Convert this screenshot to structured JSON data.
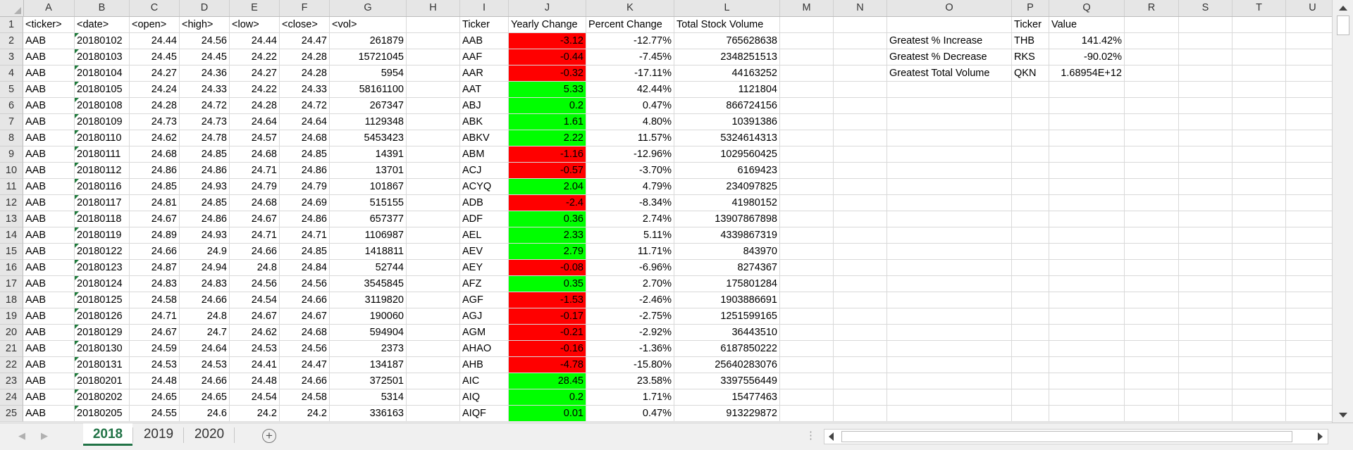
{
  "columns": [
    "A",
    "B",
    "C",
    "D",
    "E",
    "F",
    "G",
    "H",
    "I",
    "J",
    "K",
    "L",
    "M",
    "N",
    "O",
    "P",
    "Q",
    "R",
    "S",
    "T",
    "U"
  ],
  "colors": {
    "positive": "#00ff00",
    "negative": "#ff0000",
    "active_tab": "#217346"
  },
  "raw_headers": [
    "<ticker>",
    "<date>",
    "<open>",
    "<high>",
    "<low>",
    "<close>",
    "<vol>"
  ],
  "raw_rows": [
    [
      "AAB",
      "20180102",
      "24.44",
      "24.56",
      "24.44",
      "24.47",
      "261879"
    ],
    [
      "AAB",
      "20180103",
      "24.45",
      "24.45",
      "24.22",
      "24.28",
      "15721045"
    ],
    [
      "AAB",
      "20180104",
      "24.27",
      "24.36",
      "24.27",
      "24.28",
      "5954"
    ],
    [
      "AAB",
      "20180105",
      "24.24",
      "24.33",
      "24.22",
      "24.33",
      "58161100"
    ],
    [
      "AAB",
      "20180108",
      "24.28",
      "24.72",
      "24.28",
      "24.72",
      "267347"
    ],
    [
      "AAB",
      "20180109",
      "24.73",
      "24.73",
      "24.64",
      "24.64",
      "1129348"
    ],
    [
      "AAB",
      "20180110",
      "24.62",
      "24.78",
      "24.57",
      "24.68",
      "5453423"
    ],
    [
      "AAB",
      "20180111",
      "24.68",
      "24.85",
      "24.68",
      "24.85",
      "14391"
    ],
    [
      "AAB",
      "20180112",
      "24.86",
      "24.86",
      "24.71",
      "24.86",
      "13701"
    ],
    [
      "AAB",
      "20180116",
      "24.85",
      "24.93",
      "24.79",
      "24.79",
      "101867"
    ],
    [
      "AAB",
      "20180117",
      "24.81",
      "24.85",
      "24.68",
      "24.69",
      "515155"
    ],
    [
      "AAB",
      "20180118",
      "24.67",
      "24.86",
      "24.67",
      "24.86",
      "657377"
    ],
    [
      "AAB",
      "20180119",
      "24.89",
      "24.93",
      "24.71",
      "24.71",
      "1106987"
    ],
    [
      "AAB",
      "20180122",
      "24.66",
      "24.9",
      "24.66",
      "24.85",
      "1418811"
    ],
    [
      "AAB",
      "20180123",
      "24.87",
      "24.94",
      "24.8",
      "24.84",
      "52744"
    ],
    [
      "AAB",
      "20180124",
      "24.83",
      "24.83",
      "24.56",
      "24.56",
      "3545845"
    ],
    [
      "AAB",
      "20180125",
      "24.58",
      "24.66",
      "24.54",
      "24.66",
      "3119820"
    ],
    [
      "AAB",
      "20180126",
      "24.71",
      "24.8",
      "24.67",
      "24.67",
      "190060"
    ],
    [
      "AAB",
      "20180129",
      "24.67",
      "24.7",
      "24.62",
      "24.68",
      "594904"
    ],
    [
      "AAB",
      "20180130",
      "24.59",
      "24.64",
      "24.53",
      "24.56",
      "2373"
    ],
    [
      "AAB",
      "20180131",
      "24.53",
      "24.53",
      "24.41",
      "24.47",
      "134187"
    ],
    [
      "AAB",
      "20180201",
      "24.48",
      "24.66",
      "24.48",
      "24.66",
      "372501"
    ],
    [
      "AAB",
      "20180202",
      "24.65",
      "24.65",
      "24.54",
      "24.58",
      "5314"
    ],
    [
      "AAB",
      "20180205",
      "24.55",
      "24.6",
      "24.2",
      "24.2",
      "336163"
    ]
  ],
  "summary_headers": [
    "Ticker",
    "Yearly Change",
    "Percent Change",
    "Total Stock Volume"
  ],
  "summary_rows": [
    {
      "ticker": "AAB",
      "change": "-3.12",
      "pct": "-12.77%",
      "vol": "765628638",
      "dir": "neg"
    },
    {
      "ticker": "AAF",
      "change": "-0.44",
      "pct": "-7.45%",
      "vol": "2348251513",
      "dir": "neg"
    },
    {
      "ticker": "AAR",
      "change": "-0.32",
      "pct": "-17.11%",
      "vol": "44163252",
      "dir": "neg"
    },
    {
      "ticker": "AAT",
      "change": "5.33",
      "pct": "42.44%",
      "vol": "1121804",
      "dir": "pos"
    },
    {
      "ticker": "ABJ",
      "change": "0.2",
      "pct": "0.47%",
      "vol": "866724156",
      "dir": "pos"
    },
    {
      "ticker": "ABK",
      "change": "1.61",
      "pct": "4.80%",
      "vol": "10391386",
      "dir": "pos"
    },
    {
      "ticker": "ABKV",
      "change": "2.22",
      "pct": "11.57%",
      "vol": "5324614313",
      "dir": "pos"
    },
    {
      "ticker": "ABM",
      "change": "-1.16",
      "pct": "-12.96%",
      "vol": "1029560425",
      "dir": "neg"
    },
    {
      "ticker": "ACJ",
      "change": "-0.57",
      "pct": "-3.70%",
      "vol": "6169423",
      "dir": "neg"
    },
    {
      "ticker": "ACYQ",
      "change": "2.04",
      "pct": "4.79%",
      "vol": "234097825",
      "dir": "pos"
    },
    {
      "ticker": "ADB",
      "change": "-2.4",
      "pct": "-8.34%",
      "vol": "41980152",
      "dir": "neg"
    },
    {
      "ticker": "ADF",
      "change": "0.36",
      "pct": "2.74%",
      "vol": "13907867898",
      "dir": "pos"
    },
    {
      "ticker": "AEL",
      "change": "2.33",
      "pct": "5.11%",
      "vol": "4339867319",
      "dir": "pos"
    },
    {
      "ticker": "AEV",
      "change": "2.79",
      "pct": "11.71%",
      "vol": "843970",
      "dir": "pos"
    },
    {
      "ticker": "AEY",
      "change": "-0.08",
      "pct": "-6.96%",
      "vol": "8274367",
      "dir": "neg"
    },
    {
      "ticker": "AFZ",
      "change": "0.35",
      "pct": "2.70%",
      "vol": "175801284",
      "dir": "pos"
    },
    {
      "ticker": "AGF",
      "change": "-1.53",
      "pct": "-2.46%",
      "vol": "1903886691",
      "dir": "neg"
    },
    {
      "ticker": "AGJ",
      "change": "-0.17",
      "pct": "-2.75%",
      "vol": "1251599165",
      "dir": "neg"
    },
    {
      "ticker": "AGM",
      "change": "-0.21",
      "pct": "-2.92%",
      "vol": "36443510",
      "dir": "neg"
    },
    {
      "ticker": "AHAO",
      "change": "-0.16",
      "pct": "-1.36%",
      "vol": "6187850222",
      "dir": "neg"
    },
    {
      "ticker": "AHB",
      "change": "-4.78",
      "pct": "-15.80%",
      "vol": "25640283076",
      "dir": "neg"
    },
    {
      "ticker": "AIC",
      "change": "28.45",
      "pct": "23.58%",
      "vol": "3397556449",
      "dir": "pos"
    },
    {
      "ticker": "AIQ",
      "change": "0.2",
      "pct": "1.71%",
      "vol": "15477463",
      "dir": "pos"
    },
    {
      "ticker": "AIQF",
      "change": "0.01",
      "pct": "0.47%",
      "vol": "913229872",
      "dir": "pos"
    }
  ],
  "greatest": {
    "headers": [
      "Ticker",
      "Value"
    ],
    "rows": [
      {
        "label": "Greatest % Increase",
        "ticker": "THB",
        "value": "141.42%"
      },
      {
        "label": "Greatest % Decrease",
        "ticker": "RKS",
        "value": "-90.02%"
      },
      {
        "label": "Greatest Total Volume",
        "ticker": "QKN",
        "value": "1.68954E+12"
      }
    ]
  },
  "tabs": [
    {
      "label": "2018",
      "active": true
    },
    {
      "label": "2019",
      "active": false
    },
    {
      "label": "2020",
      "active": false
    }
  ]
}
